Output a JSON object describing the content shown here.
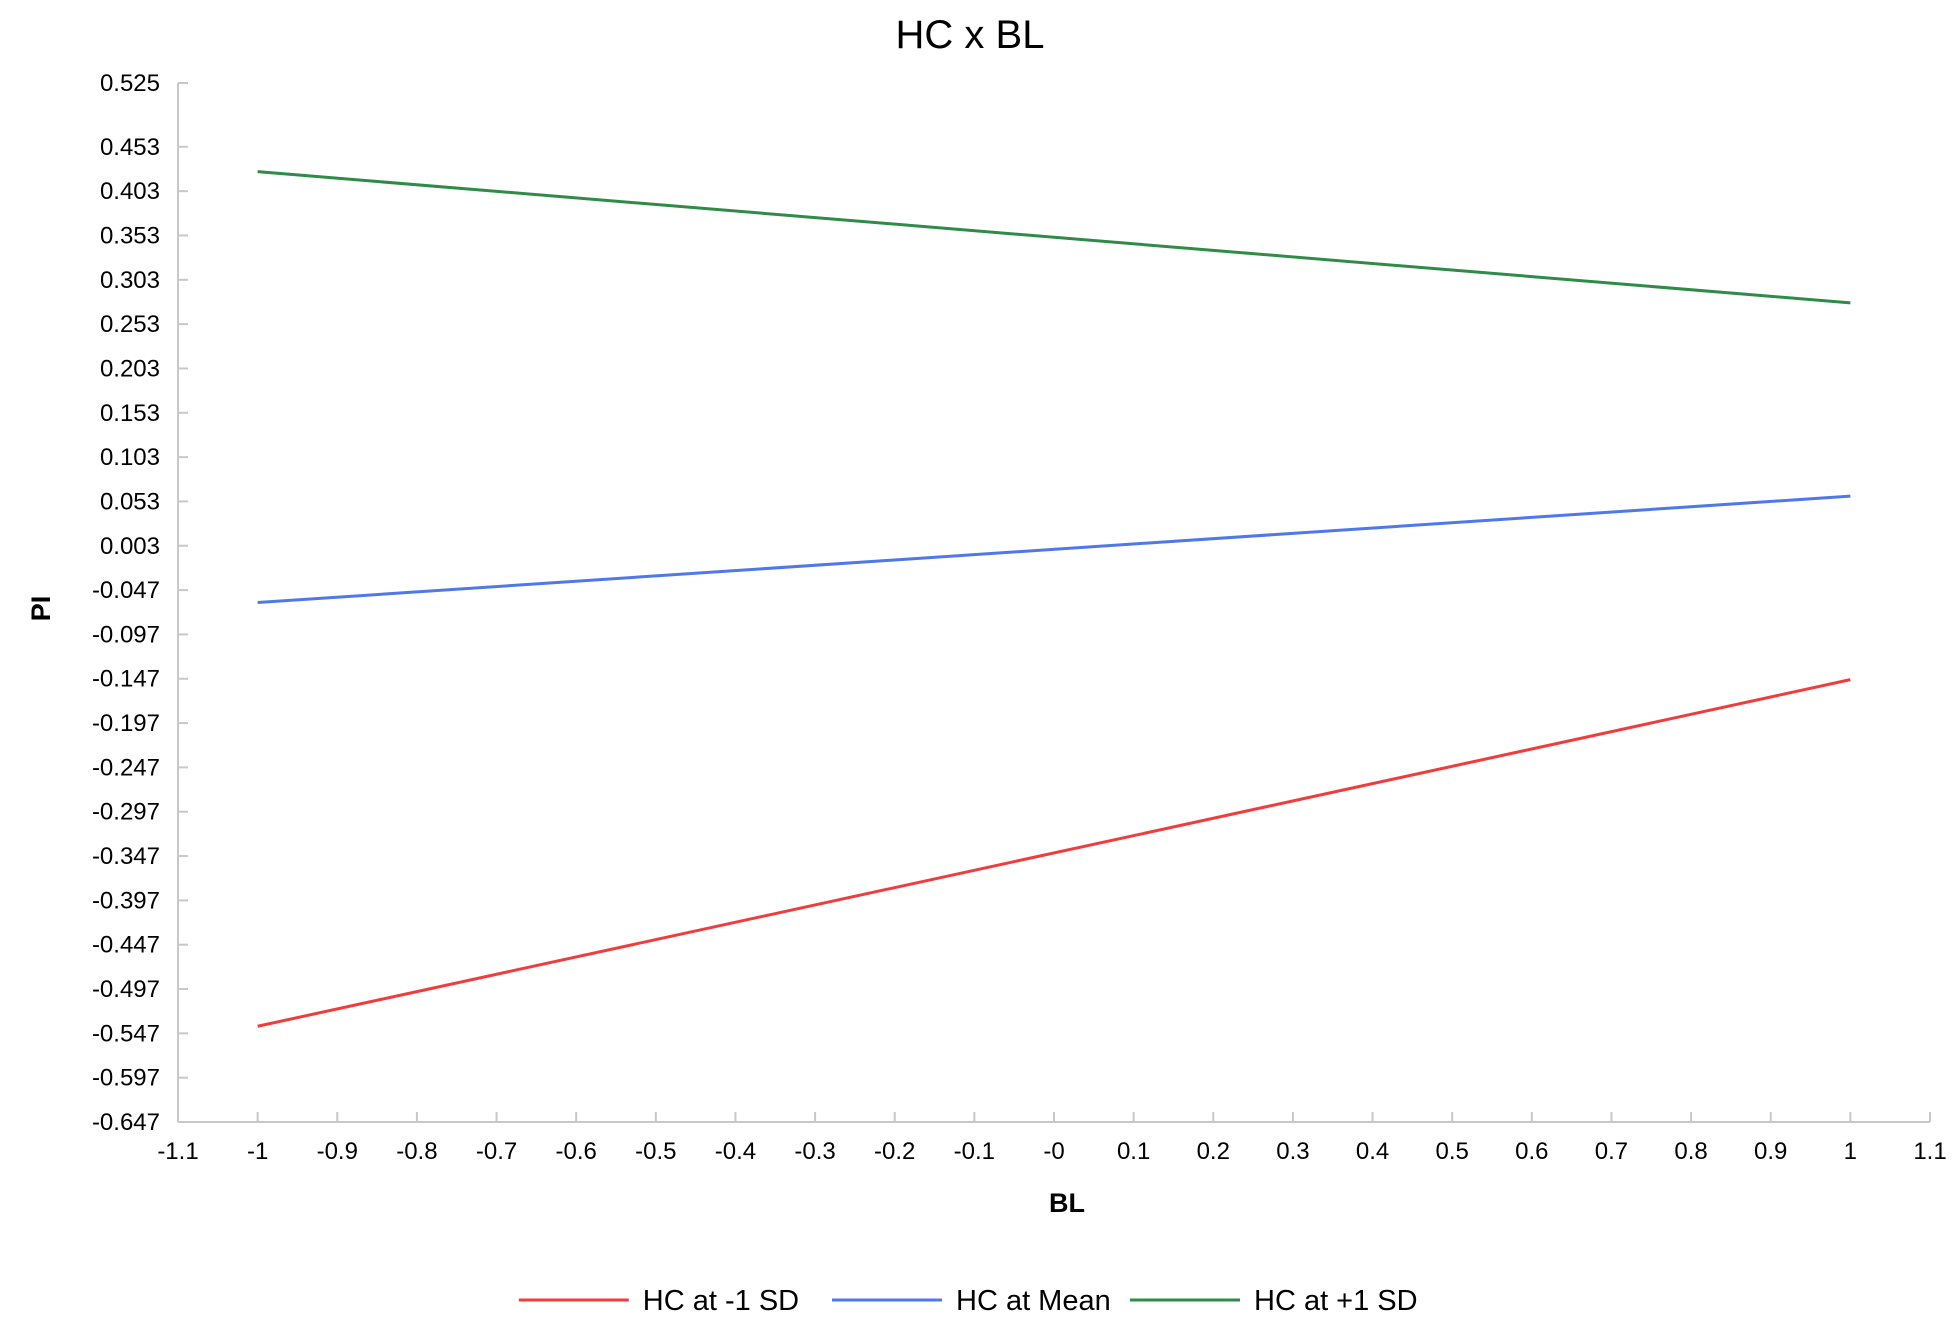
{
  "chart_data": {
    "type": "line",
    "title": "HC x BL",
    "xlabel": "BL",
    "ylabel": "PI",
    "xlim": [
      -1.1,
      1.1
    ],
    "ylim": [
      -0.647,
      0.525
    ],
    "x_ticks": [
      -1.1,
      -1,
      -0.9,
      -0.8,
      -0.7,
      -0.6,
      -0.5,
      -0.4,
      -0.3,
      -0.2,
      -0.1,
      0,
      0.1,
      0.2,
      0.3,
      0.4,
      0.5,
      0.6,
      0.7,
      0.8,
      0.9,
      1,
      1.1
    ],
    "x_tick_labels": [
      "-1.1",
      "-1",
      "-0.9",
      "-0.8",
      "-0.7",
      "-0.6",
      "-0.5",
      "-0.4",
      "-0.3",
      "-0.2",
      "-0.1",
      "-0",
      "0.1",
      "0.2",
      "0.3",
      "0.4",
      "0.5",
      "0.6",
      "0.7",
      "0.8",
      "0.9",
      "1",
      "1.1"
    ],
    "y_ticks": [
      0.525,
      0.453,
      0.403,
      0.353,
      0.303,
      0.253,
      0.203,
      0.153,
      0.103,
      0.053,
      0.003,
      -0.047,
      -0.097,
      -0.147,
      -0.197,
      -0.247,
      -0.297,
      -0.347,
      -0.397,
      -0.447,
      -0.497,
      -0.547,
      -0.597,
      -0.647
    ],
    "y_tick_labels": [
      "0.525",
      "0.453",
      "0.403",
      "0.353",
      "0.303",
      "0.253",
      "0.203",
      "0.153",
      "0.103",
      "0.053",
      "0.003",
      "-0.047",
      "-0.097",
      "-0.147",
      "-0.197",
      "-0.247",
      "-0.297",
      "-0.347",
      "-0.397",
      "-0.447",
      "-0.497",
      "-0.547",
      "-0.597",
      "-0.647"
    ],
    "grid": false,
    "legend_position": "bottom",
    "series": [
      {
        "name": "HC at -1 SD",
        "color": "#f03c3c",
        "x": [
          -1,
          1
        ],
        "y": [
          -0.539,
          -0.148
        ]
      },
      {
        "name": "HC at Mean",
        "color": "#4f78e8",
        "x": [
          -1,
          1
        ],
        "y": [
          -0.061,
          0.059
        ]
      },
      {
        "name": "HC at +1 SD",
        "color": "#2e8b48",
        "x": [
          -1,
          1
        ],
        "y": [
          0.425,
          0.277
        ]
      }
    ]
  }
}
